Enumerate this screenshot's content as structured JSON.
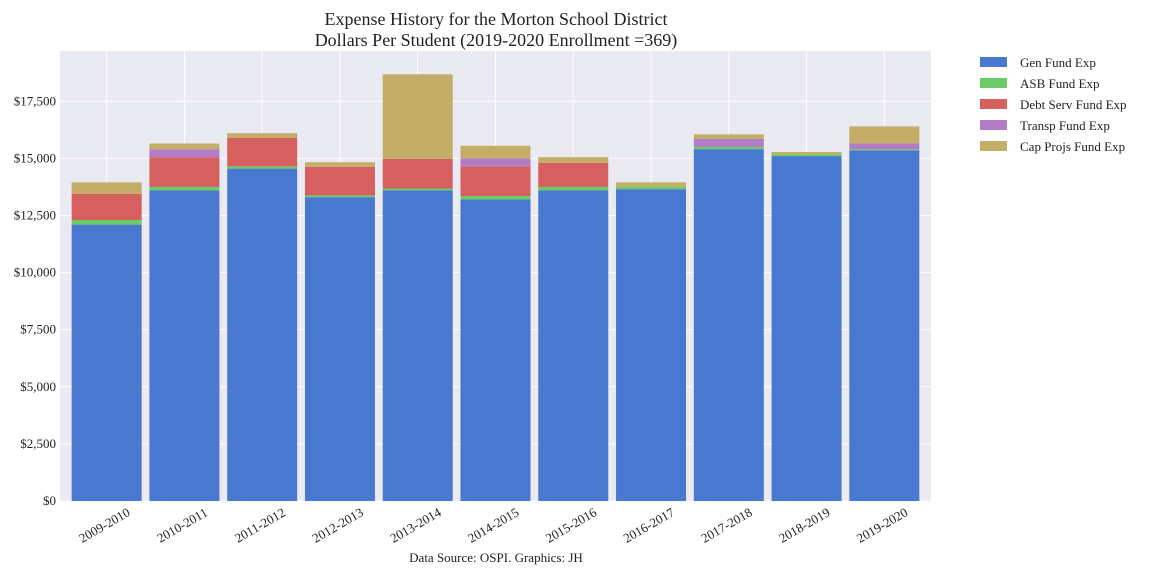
{
  "chart_data": {
    "type": "bar",
    "stacked": true,
    "title_lines": [
      "Expense History for the Morton School District",
      "Dollars Per Student (2019-2020 Enrollment =369)"
    ],
    "footnote": "Data Source: OSPI. Graphics: JH",
    "xlabel": "",
    "ylabel": "",
    "ylim": [
      0,
      19700
    ],
    "yticks": [
      0,
      2500,
      5000,
      7500,
      10000,
      12500,
      15000,
      17500
    ],
    "ytick_labels": [
      "$0",
      "$2,500",
      "$5,000",
      "$7,500",
      "$10,000",
      "$12,500",
      "$15,000",
      "$17,500"
    ],
    "grid": true,
    "legend_position": "outside-top-right",
    "categories": [
      "2009-2010",
      "2010-2011",
      "2011-2012",
      "2012-2013",
      "2013-2014",
      "2014-2015",
      "2015-2016",
      "2016-2017",
      "2017-2018",
      "2018-2019",
      "2019-2020"
    ],
    "series": [
      {
        "name": "Gen Fund Exp",
        "color": "#4878d0",
        "values": [
          12100,
          13600,
          14550,
          13300,
          13600,
          13200,
          13600,
          13650,
          15400,
          15100,
          15350
        ]
      },
      {
        "name": "ASB Fund Exp",
        "color": "#6acc64",
        "values": [
          200,
          150,
          100,
          80,
          80,
          150,
          150,
          100,
          100,
          80,
          50
        ]
      },
      {
        "name": "Debt Serv Fund Exp",
        "color": "#d65f5f",
        "values": [
          1150,
          1300,
          1250,
          1250,
          1300,
          1300,
          1050,
          0,
          0,
          0,
          0
        ]
      },
      {
        "name": "Transp Fund Exp",
        "color": "#b47cc7",
        "values": [
          0,
          350,
          0,
          0,
          0,
          350,
          0,
          0,
          350,
          0,
          250
        ]
      },
      {
        "name": "Cap Projs Fund Exp",
        "color": "#c4ad66",
        "values": [
          500,
          250,
          200,
          200,
          3700,
          550,
          250,
          200,
          200,
          100,
          750
        ]
      }
    ]
  }
}
